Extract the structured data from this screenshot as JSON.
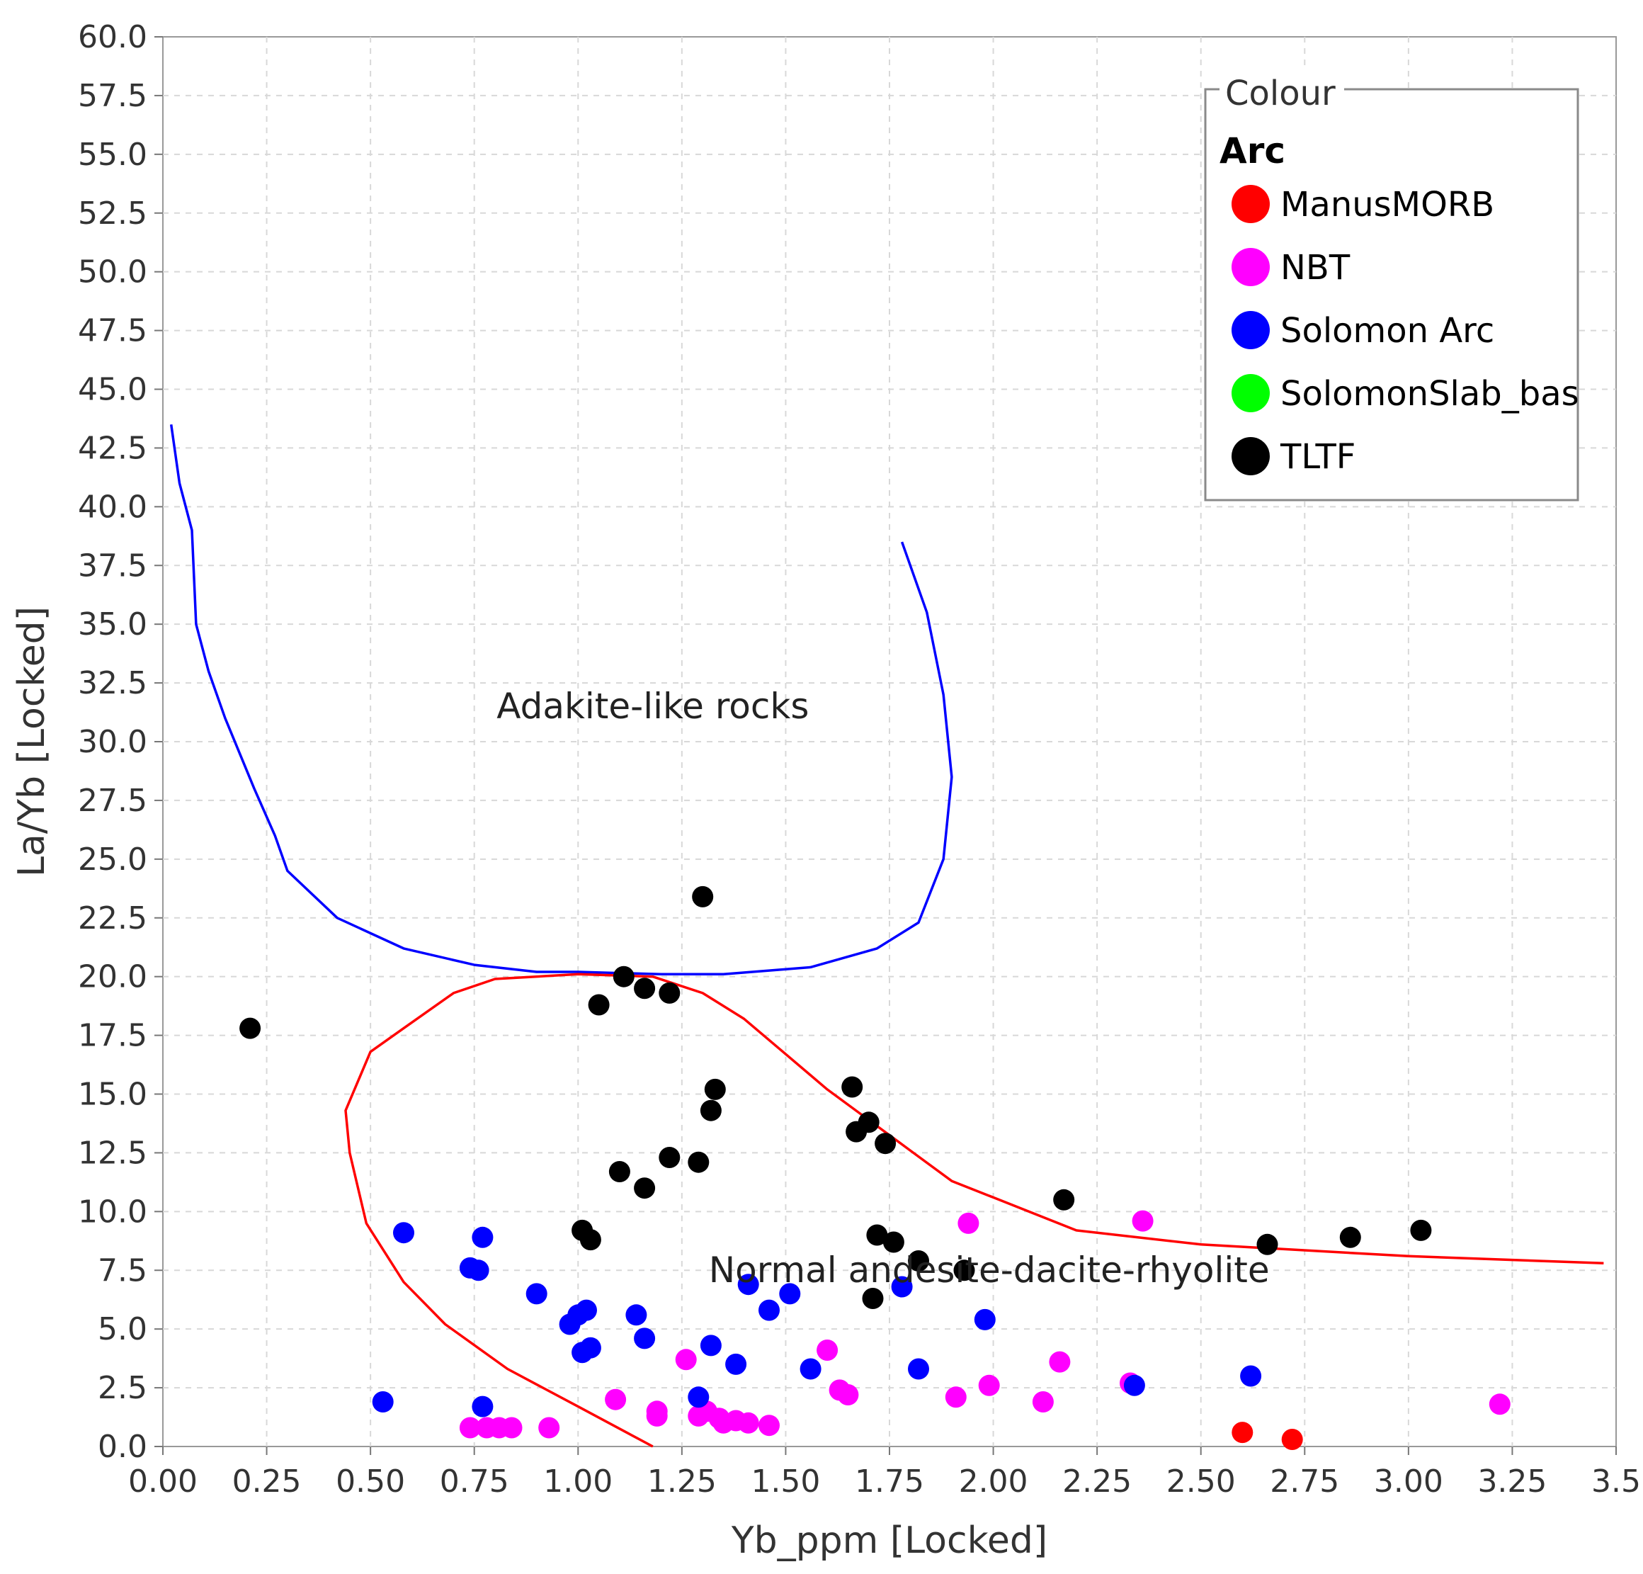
{
  "chart_data": {
    "type": "scatter",
    "xlabel": "Yb_ppm [Locked]",
    "ylabel": "La/Yb [Locked]",
    "xlim": [
      0,
      3.5
    ],
    "ylim": [
      0,
      60
    ],
    "x_ticks": [
      "0.00",
      "0.25",
      "0.50",
      "0.75",
      "1.00",
      "1.25",
      "1.50",
      "1.75",
      "2.00",
      "2.25",
      "2.50",
      "2.75",
      "3.00",
      "3.25",
      "3.5"
    ],
    "y_ticks": [
      "0.0",
      "2.5",
      "5.0",
      "7.5",
      "10.0",
      "12.5",
      "15.0",
      "17.5",
      "20.0",
      "22.5",
      "25.0",
      "27.5",
      "30.0",
      "32.5",
      "35.0",
      "37.5",
      "40.0",
      "42.5",
      "45.0",
      "47.5",
      "50.0",
      "52.5",
      "55.0",
      "57.5",
      "60.0"
    ],
    "grid": true,
    "legend": {
      "title": "Colour",
      "group": "Arc",
      "placement": "top-right",
      "entries": [
        {
          "name": "ManusMORB",
          "color": "#ff0000"
        },
        {
          "name": "NBT",
          "color": "#ff00ff"
        },
        {
          "name": "Solomon Arc",
          "color": "#0000ff"
        },
        {
          "name": "SolomonSlab_bas",
          "color": "#00ff00"
        },
        {
          "name": "TLTF",
          "color": "#000000"
        }
      ]
    },
    "annotations": [
      {
        "text": "Adakite-like rocks",
        "x": 1.18,
        "y": 31.0
      },
      {
        "text": "Normal andesite-dacite-rhyolite",
        "x": 1.99,
        "y": 7.0
      }
    ],
    "boundaries": [
      {
        "name": "adakite",
        "color": "#0000ff",
        "points": [
          [
            0.02,
            43.5
          ],
          [
            0.04,
            41
          ],
          [
            0.07,
            39
          ],
          [
            0.08,
            35
          ],
          [
            0.11,
            33
          ],
          [
            0.15,
            31
          ],
          [
            0.22,
            28
          ],
          [
            0.27,
            26
          ],
          [
            0.3,
            24.5
          ],
          [
            0.42,
            22.5
          ],
          [
            0.58,
            21.2
          ],
          [
            0.75,
            20.5
          ],
          [
            0.9,
            20.2
          ],
          [
            1.0,
            20.2
          ],
          [
            1.2,
            20.1
          ],
          [
            1.35,
            20.1
          ],
          [
            1.56,
            20.4
          ],
          [
            1.72,
            21.2
          ],
          [
            1.82,
            22.3
          ],
          [
            1.88,
            25
          ],
          [
            1.9,
            28.5
          ],
          [
            1.88,
            32
          ],
          [
            1.84,
            35.5
          ],
          [
            1.78,
            38.5
          ]
        ]
      },
      {
        "name": "normal",
        "color": "#ff0000",
        "points": [
          [
            1.18,
            0
          ],
          [
            1.0,
            1.7
          ],
          [
            0.83,
            3.3
          ],
          [
            0.68,
            5.2
          ],
          [
            0.58,
            7.0
          ],
          [
            0.49,
            9.5
          ],
          [
            0.45,
            12.5
          ],
          [
            0.44,
            14.3
          ],
          [
            0.5,
            16.8
          ],
          [
            0.58,
            17.8
          ],
          [
            0.7,
            19.3
          ],
          [
            0.8,
            19.9
          ],
          [
            1.0,
            20.1
          ],
          [
            1.18,
            20
          ],
          [
            1.3,
            19.3
          ],
          [
            1.4,
            18.2
          ],
          [
            1.5,
            16.7
          ],
          [
            1.6,
            15.2
          ],
          [
            1.7,
            13.9
          ],
          [
            1.8,
            12.6
          ],
          [
            1.9,
            11.3
          ],
          [
            2.0,
            10.6
          ],
          [
            2.2,
            9.2
          ],
          [
            2.5,
            8.6
          ],
          [
            3.0,
            8.1
          ],
          [
            3.47,
            7.8
          ]
        ]
      }
    ],
    "series": [
      {
        "name": "ManusMORB",
        "color": "#ff0000",
        "points": [
          [
            2.6,
            0.6
          ],
          [
            2.72,
            0.3
          ]
        ]
      },
      {
        "name": "NBT",
        "color": "#ff00ff",
        "points": [
          [
            0.74,
            0.8
          ],
          [
            0.78,
            0.8
          ],
          [
            0.81,
            0.8
          ],
          [
            0.84,
            0.8
          ],
          [
            0.93,
            0.8
          ],
          [
            1.09,
            2.0
          ],
          [
            1.19,
            1.5
          ],
          [
            1.19,
            1.3
          ],
          [
            1.26,
            3.7
          ],
          [
            1.29,
            1.3
          ],
          [
            1.31,
            1.5
          ],
          [
            1.34,
            1.2
          ],
          [
            1.35,
            1.0
          ],
          [
            1.38,
            1.1
          ],
          [
            1.41,
            1.0
          ],
          [
            1.46,
            0.9
          ],
          [
            1.6,
            4.1
          ],
          [
            1.63,
            2.4
          ],
          [
            1.65,
            2.2
          ],
          [
            1.91,
            2.1
          ],
          [
            1.94,
            9.5
          ],
          [
            1.99,
            2.6
          ],
          [
            2.12,
            1.9
          ],
          [
            2.16,
            3.6
          ],
          [
            2.33,
            2.7
          ],
          [
            2.36,
            9.6
          ],
          [
            3.22,
            1.8
          ]
        ]
      },
      {
        "name": "Solomon Arc",
        "color": "#0000ff",
        "points": [
          [
            0.53,
            1.9
          ],
          [
            0.58,
            9.1
          ],
          [
            0.74,
            7.6
          ],
          [
            0.76,
            7.5
          ],
          [
            0.77,
            1.7
          ],
          [
            0.77,
            8.9
          ],
          [
            0.9,
            6.5
          ],
          [
            0.98,
            5.2
          ],
          [
            1.0,
            5.6
          ],
          [
            1.01,
            4.0
          ],
          [
            1.02,
            5.8
          ],
          [
            1.03,
            4.2
          ],
          [
            1.14,
            5.6
          ],
          [
            1.16,
            4.6
          ],
          [
            1.29,
            2.1
          ],
          [
            1.32,
            4.3
          ],
          [
            1.38,
            3.5
          ],
          [
            1.41,
            6.9
          ],
          [
            1.46,
            5.8
          ],
          [
            1.51,
            6.5
          ],
          [
            1.56,
            3.3
          ],
          [
            1.78,
            6.8
          ],
          [
            1.82,
            3.3
          ],
          [
            1.98,
            5.4
          ],
          [
            2.34,
            2.6
          ],
          [
            2.62,
            3.0
          ]
        ]
      },
      {
        "name": "SolomonSlab_bas",
        "color": "#00ff00",
        "points": []
      },
      {
        "name": "TLTF",
        "color": "#000000",
        "points": [
          [
            0.21,
            17.8
          ],
          [
            1.01,
            9.2
          ],
          [
            1.03,
            8.8
          ],
          [
            1.05,
            18.8
          ],
          [
            1.1,
            11.7
          ],
          [
            1.11,
            20.0
          ],
          [
            1.16,
            19.5
          ],
          [
            1.16,
            11.0
          ],
          [
            1.22,
            19.3
          ],
          [
            1.22,
            12.3
          ],
          [
            1.29,
            12.1
          ],
          [
            1.3,
            23.4
          ],
          [
            1.32,
            14.3
          ],
          [
            1.33,
            15.2
          ],
          [
            1.66,
            15.3
          ],
          [
            1.67,
            13.4
          ],
          [
            1.7,
            13.8
          ],
          [
            1.71,
            6.3
          ],
          [
            1.72,
            9.0
          ],
          [
            1.74,
            12.9
          ],
          [
            1.76,
            8.7
          ],
          [
            1.82,
            7.9
          ],
          [
            1.93,
            7.5
          ],
          [
            2.17,
            10.5
          ],
          [
            2.66,
            8.6
          ],
          [
            2.86,
            8.9
          ],
          [
            3.03,
            9.2
          ]
        ]
      }
    ]
  }
}
